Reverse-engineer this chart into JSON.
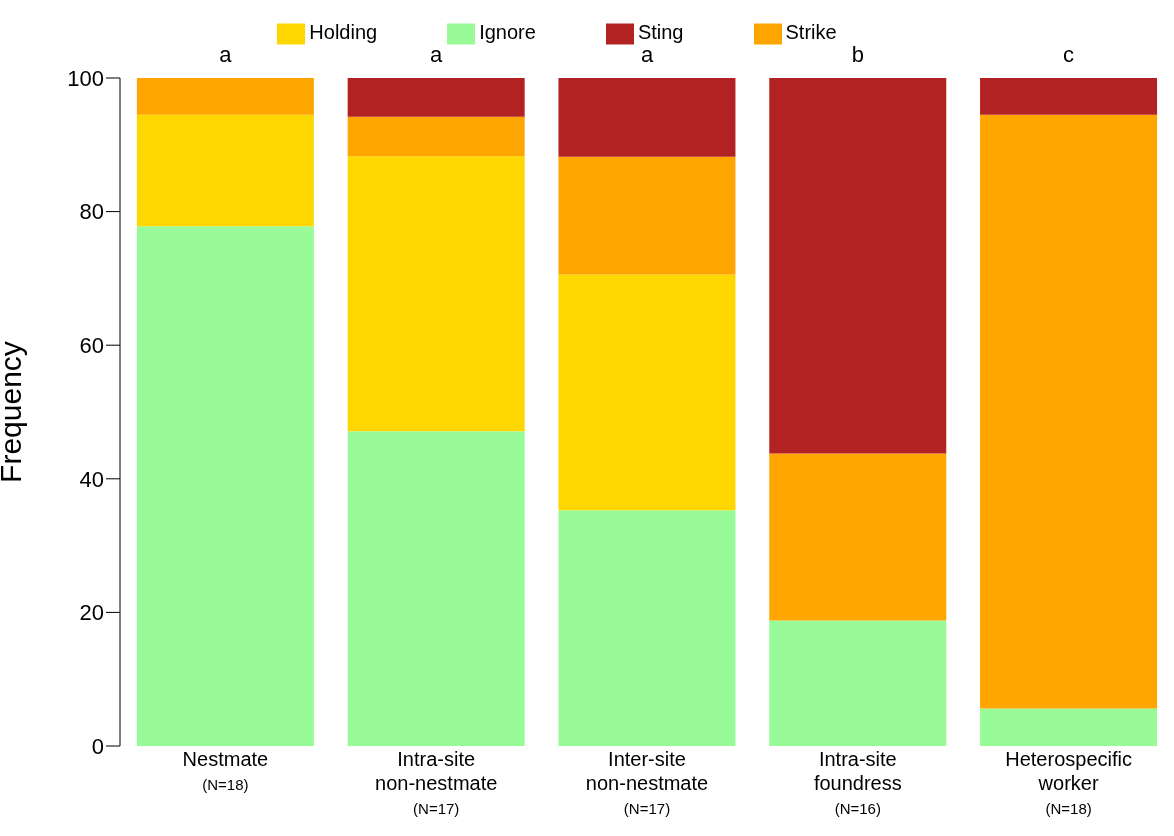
{
  "chart_data": {
    "type": "bar",
    "stacked": true,
    "ylabel": "Frequency",
    "categories": [
      "Nestmate\n(N=18)",
      "Intra-site\nnon-nestmate\n(N=17)",
      "Inter-site\nnon-nestmate\n(N=17)",
      "Intra-site\nfoundress\n(N=16)",
      "Heterospecific\nworker\n(N=18)"
    ],
    "series": [
      {
        "name": "Ignore",
        "color": "#98fb98",
        "values": [
          77.8,
          47.1,
          35.3,
          18.8,
          5.6
        ]
      },
      {
        "name": "Holding",
        "color": "#ffd700",
        "values": [
          16.7,
          41.2,
          35.3,
          0,
          0
        ]
      },
      {
        "name": "Strike",
        "color": "#ffa500",
        "values": [
          5.6,
          5.9,
          17.6,
          25,
          88.9
        ]
      },
      {
        "name": "Sting",
        "color": "#b22222",
        "values": [
          0,
          5.9,
          11.8,
          56.2,
          5.6
        ]
      }
    ],
    "ylim": [
      0,
      100
    ],
    "yticks": [
      0,
      20,
      40,
      60,
      80,
      100
    ],
    "grid": false,
    "legend": "top",
    "annotations": [
      {
        "text": "a",
        "x": "Nestmate\n(N=18)",
        "y": 100
      },
      {
        "text": "a",
        "x": "Intra-site\nnon-nestmate\n(N=17)",
        "y": 100
      },
      {
        "text": "a",
        "x": "Inter-site\nnon-nestmate\n(N=17)",
        "y": 100
      },
      {
        "text": "b",
        "x": "Intra-site\nfoundress\n(N=16)",
        "y": 100
      },
      {
        "text": "c",
        "x": "Heterospecific\nworker\n(N=18)",
        "y": 100
      }
    ]
  }
}
